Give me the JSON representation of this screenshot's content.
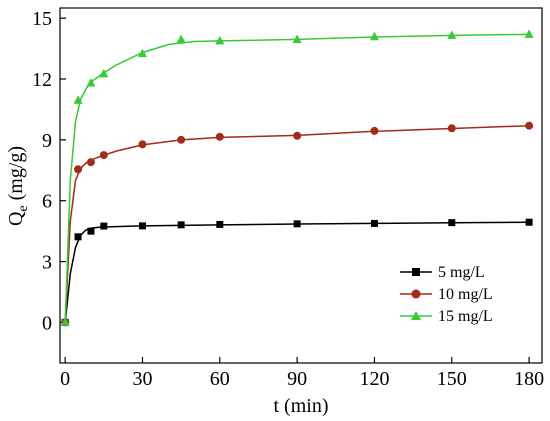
{
  "chart_data": {
    "type": "line",
    "xlabel": "t (min)",
    "ylabel": {
      "main": "Q",
      "sub": "e",
      "unit": " (mg/g)"
    },
    "xlim": [
      -2,
      185
    ],
    "ylim": [
      -2,
      15.5
    ],
    "xticks": [
      0,
      30,
      60,
      90,
      120,
      150,
      180
    ],
    "yticks": [
      0,
      3,
      6,
      9,
      12,
      15
    ],
    "grid": false,
    "legend_position": "bottom-right",
    "series": [
      {
        "name": "5 mg/L",
        "color": "#000000",
        "marker": "square",
        "x": [
          0,
          5,
          10,
          15,
          30,
          45,
          60,
          90,
          120,
          150,
          180
        ],
        "y": [
          0,
          4.22,
          4.5,
          4.75,
          4.76,
          4.81,
          4.83,
          4.86,
          4.88,
          4.92,
          4.94
        ],
        "fit": [
          [
            0,
            0
          ],
          [
            2,
            2.4
          ],
          [
            4,
            3.7
          ],
          [
            6,
            4.3
          ],
          [
            8,
            4.55
          ],
          [
            10,
            4.64
          ],
          [
            13,
            4.69
          ],
          [
            18,
            4.72
          ],
          [
            30,
            4.76
          ],
          [
            60,
            4.81
          ],
          [
            90,
            4.85
          ],
          [
            120,
            4.88
          ],
          [
            150,
            4.91
          ],
          [
            180,
            4.94
          ]
        ]
      },
      {
        "name": "10 mg/L",
        "color": "#a52a1a",
        "marker": "circle",
        "x": [
          0,
          5,
          10,
          15,
          30,
          45,
          60,
          90,
          120,
          150,
          180
        ],
        "y": [
          0,
          7.55,
          7.9,
          8.25,
          8.78,
          9.0,
          9.15,
          9.2,
          9.44,
          9.57,
          9.7
        ],
        "fit": [
          [
            0,
            0
          ],
          [
            2,
            5.0
          ],
          [
            4,
            7.0
          ],
          [
            6,
            7.6
          ],
          [
            8,
            7.85
          ],
          [
            10,
            8.0
          ],
          [
            15,
            8.25
          ],
          [
            20,
            8.45
          ],
          [
            30,
            8.75
          ],
          [
            45,
            9.0
          ],
          [
            60,
            9.12
          ],
          [
            90,
            9.22
          ],
          [
            120,
            9.42
          ],
          [
            150,
            9.56
          ],
          [
            180,
            9.7
          ]
        ]
      },
      {
        "name": "15 mg/L",
        "color": "#33cc33",
        "marker": "triangle",
        "x": [
          0,
          5,
          10,
          15,
          30,
          45,
          60,
          90,
          120,
          150,
          180
        ],
        "y": [
          0,
          10.95,
          11.8,
          12.25,
          13.25,
          13.95,
          13.88,
          13.95,
          14.08,
          14.15,
          14.2
        ],
        "fit": [
          [
            0,
            0
          ],
          [
            2,
            7.0
          ],
          [
            4,
            9.9
          ],
          [
            6,
            11.0
          ],
          [
            8,
            11.5
          ],
          [
            10,
            11.85
          ],
          [
            15,
            12.3
          ],
          [
            20,
            12.7
          ],
          [
            30,
            13.3
          ],
          [
            40,
            13.7
          ],
          [
            50,
            13.85
          ],
          [
            60,
            13.88
          ],
          [
            90,
            13.95
          ],
          [
            120,
            14.07
          ],
          [
            150,
            14.15
          ],
          [
            180,
            14.2
          ]
        ]
      }
    ]
  }
}
